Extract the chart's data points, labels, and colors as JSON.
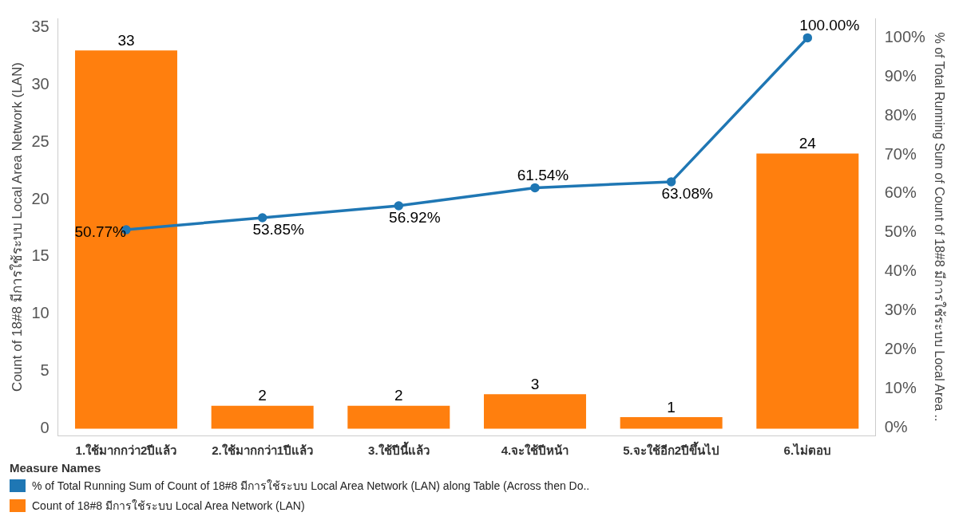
{
  "chart_data": {
    "type": "bar",
    "categories": [
      "1.ใช้มากกว่า2ปีแล้ว",
      "2.ใช้มากกว่า1ปีแล้ว",
      "3.ใช้ปีนี้แล้ว",
      "4.จะใช้ปีหน้า",
      "5.จะใช้อีก2ปีขึ้นไป",
      "6.ไม่ตอบ"
    ],
    "ylabel": "Count of 18#8 มีการใช้ระบบ Local Area Network (LAN)",
    "y2label": "% of Total Running Sum of Count of 18#8 มีการใช้ระบบ Local Area ..",
    "legend_title": "Measure Names",
    "legend": "bottom left",
    "grid": false,
    "marker": "circle",
    "ylim": [
      -0.6,
      35.8
    ],
    "yticks": [
      0,
      5,
      10,
      15,
      20,
      25,
      30,
      35
    ],
    "y2lim": [
      -2,
      105
    ],
    "y2ticks": [
      {
        "value": 0,
        "label": "0%"
      },
      {
        "value": 10,
        "label": "10%"
      },
      {
        "value": 20,
        "label": "20%"
      },
      {
        "value": 30,
        "label": "30%"
      },
      {
        "value": 40,
        "label": "40%"
      },
      {
        "value": 50,
        "label": "50%"
      },
      {
        "value": 60,
        "label": "60%"
      },
      {
        "value": 70,
        "label": "70%"
      },
      {
        "value": 80,
        "label": "80%"
      },
      {
        "value": 90,
        "label": "90%"
      },
      {
        "value": 100,
        "label": "100%"
      }
    ],
    "series": [
      {
        "name": "% of Total Running Sum of Count of 18#8 มีการใช้ระบบ Local Area Network (LAN) along Table (Across then Do..",
        "type": "line",
        "axis": "y2",
        "color": "#1f77b4",
        "values": [
          50.77,
          53.85,
          56.92,
          61.54,
          63.08,
          100
        ],
        "value_labels": [
          "50.77%",
          "53.85%",
          "56.92%",
          "61.54%",
          "63.08%",
          "100.00%"
        ]
      },
      {
        "name": "Count of 18#8 มีการใช้ระบบ Local Area Network (LAN)",
        "color": "#ff7f0e",
        "values": [
          33,
          2,
          2,
          3,
          1,
          24
        ],
        "value_labels": [
          "33",
          "2",
          "2",
          "3",
          "1",
          "24"
        ]
      }
    ]
  }
}
